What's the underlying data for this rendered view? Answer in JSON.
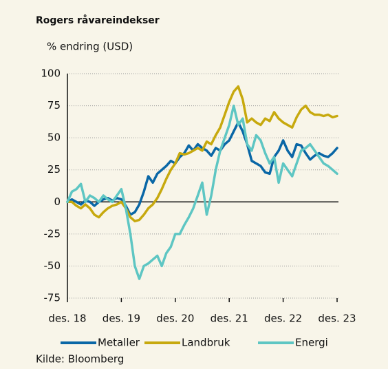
{
  "chart_data": {
    "type": "line",
    "title": "Rogers råvareindekser",
    "subtitle": "% endring (USD)",
    "source": "Kilde: Bloomberg",
    "x": [
      0,
      1,
      2,
      3,
      4,
      5,
      6,
      7,
      8,
      9,
      10,
      11,
      12,
      13,
      14,
      15,
      16,
      17,
      18,
      19,
      20,
      21,
      22,
      23,
      24,
      25,
      26,
      27,
      28,
      29,
      30,
      31,
      32,
      33,
      34,
      35,
      36,
      37,
      38,
      39,
      40,
      41,
      42,
      43,
      44,
      45,
      46,
      47,
      48,
      49,
      50,
      51,
      52,
      53,
      54,
      55,
      56,
      57,
      58,
      59,
      60
    ],
    "xlim": [
      0,
      60
    ],
    "xticks": [
      {
        "value": 0,
        "label": "des. 18"
      },
      {
        "value": 12,
        "label": "des. 19"
      },
      {
        "value": 24,
        "label": "des. 20"
      },
      {
        "value": 36,
        "label": "des. 21"
      },
      {
        "value": 48,
        "label": "des. 22"
      },
      {
        "value": 60,
        "label": "des. 23"
      }
    ],
    "ylim": [
      -75,
      100
    ],
    "yticks": [
      100,
      75,
      50,
      25,
      0,
      -25,
      -50,
      -75
    ],
    "grid": true,
    "series": [
      {
        "name": "Metaller",
        "color": "#0a67a6",
        "values": [
          0,
          2,
          0,
          -2,
          1,
          0,
          -3,
          0,
          2,
          3,
          1,
          3,
          2,
          -3,
          -10,
          -8,
          -2,
          8,
          20,
          15,
          22,
          25,
          28,
          32,
          30,
          35,
          38,
          44,
          40,
          45,
          42,
          40,
          36,
          42,
          40,
          45,
          48,
          55,
          62,
          55,
          45,
          32,
          30,
          28,
          23,
          22,
          35,
          40,
          48,
          40,
          35,
          45,
          44,
          38,
          33,
          36,
          38,
          36,
          35,
          38,
          42
        ]
      },
      {
        "name": "Landbruk",
        "color": "#c7a90e",
        "values": [
          0,
          0,
          -3,
          -5,
          -2,
          -5,
          -10,
          -12,
          -8,
          -5,
          -3,
          -2,
          0,
          -5,
          -12,
          -15,
          -14,
          -10,
          -5,
          -2,
          3,
          10,
          18,
          25,
          30,
          38,
          37,
          38,
          40,
          42,
          40,
          47,
          45,
          52,
          58,
          68,
          78,
          86,
          90,
          80,
          62,
          65,
          62,
          60,
          65,
          63,
          70,
          65,
          62,
          60,
          58,
          66,
          72,
          75,
          70,
          68,
          68,
          67,
          68,
          66,
          67
        ]
      },
      {
        "name": "Energi",
        "color": "#5ec6c3",
        "values": [
          0,
          8,
          10,
          14,
          0,
          5,
          3,
          0,
          5,
          2,
          0,
          5,
          10,
          -5,
          -25,
          -50,
          -60,
          -50,
          -48,
          -45,
          -42,
          -50,
          -40,
          -35,
          -25,
          -25,
          -18,
          -12,
          -5,
          5,
          15,
          -10,
          5,
          25,
          40,
          50,
          60,
          75,
          60,
          65,
          45,
          40,
          52,
          48,
          38,
          30,
          35,
          15,
          30,
          25,
          20,
          30,
          40,
          42,
          45,
          40,
          35,
          30,
          28,
          25,
          22
        ]
      }
    ],
    "legend": "bottom"
  }
}
